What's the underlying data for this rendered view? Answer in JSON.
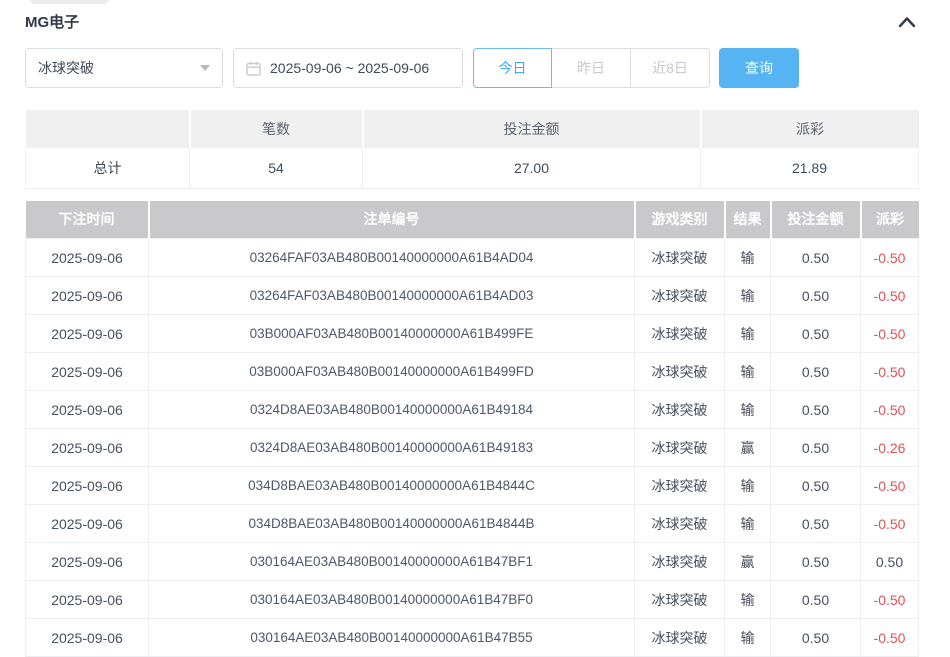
{
  "panel": {
    "title": "MG电子"
  },
  "filters": {
    "game_select": {
      "value": "冰球突破"
    },
    "date_range": {
      "value": "2025-09-06 ~ 2025-09-06"
    },
    "quick_buttons": [
      {
        "label": "今日",
        "active": true
      },
      {
        "label": "昨日",
        "active": false
      },
      {
        "label": "近8日",
        "active": false
      }
    ],
    "search_button": "查询"
  },
  "summary": {
    "headers": [
      "",
      "笔数",
      "投注金额",
      "派彩"
    ],
    "row": {
      "label": "总计",
      "count": "54",
      "bet_amount": "27.00",
      "payout": "21.89"
    }
  },
  "table": {
    "headers": [
      "下注时间",
      "注单编号",
      "游戏类别",
      "结果",
      "投注金额",
      "派彩"
    ],
    "rows": [
      {
        "date": "2025-09-06",
        "id": "03264FAF03AB480B00140000000A61B4AD04",
        "game": "冰球突破",
        "result": "输",
        "amount": "0.50",
        "payout": "-0.50"
      },
      {
        "date": "2025-09-06",
        "id": "03264FAF03AB480B00140000000A61B4AD03",
        "game": "冰球突破",
        "result": "输",
        "amount": "0.50",
        "payout": "-0.50"
      },
      {
        "date": "2025-09-06",
        "id": "03B000AF03AB480B00140000000A61B499FE",
        "game": "冰球突破",
        "result": "输",
        "amount": "0.50",
        "payout": "-0.50"
      },
      {
        "date": "2025-09-06",
        "id": "03B000AF03AB480B00140000000A61B499FD",
        "game": "冰球突破",
        "result": "输",
        "amount": "0.50",
        "payout": "-0.50"
      },
      {
        "date": "2025-09-06",
        "id": "0324D8AE03AB480B00140000000A61B49184",
        "game": "冰球突破",
        "result": "输",
        "amount": "0.50",
        "payout": "-0.50"
      },
      {
        "date": "2025-09-06",
        "id": "0324D8AE03AB480B00140000000A61B49183",
        "game": "冰球突破",
        "result": "赢",
        "amount": "0.50",
        "payout": "-0.26"
      },
      {
        "date": "2025-09-06",
        "id": "034D8BAE03AB480B00140000000A61B4844C",
        "game": "冰球突破",
        "result": "输",
        "amount": "0.50",
        "payout": "-0.50"
      },
      {
        "date": "2025-09-06",
        "id": "034D8BAE03AB480B00140000000A61B4844B",
        "game": "冰球突破",
        "result": "输",
        "amount": "0.50",
        "payout": "-0.50"
      },
      {
        "date": "2025-09-06",
        "id": "030164AE03AB480B00140000000A61B47BF1",
        "game": "冰球突破",
        "result": "赢",
        "amount": "0.50",
        "payout": "0.50"
      },
      {
        "date": "2025-09-06",
        "id": "030164AE03AB480B00140000000A61B47BF0",
        "game": "冰球突破",
        "result": "输",
        "amount": "0.50",
        "payout": "-0.50"
      },
      {
        "date": "2025-09-06",
        "id": "030164AE03AB480B00140000000A61B47B55",
        "game": "冰球突破",
        "result": "输",
        "amount": "0.50",
        "payout": "-0.50"
      }
    ]
  },
  "colors": {
    "accent_blue": "#55b4f1",
    "negative_red": "#df5354",
    "table_header_gray": "#c9c9cb",
    "summary_header_gray": "#f0f0f0"
  }
}
